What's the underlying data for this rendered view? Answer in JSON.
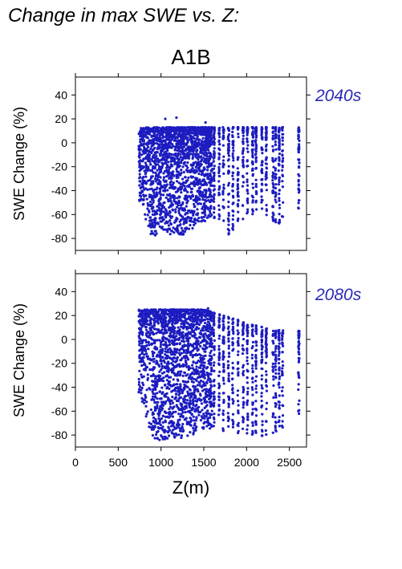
{
  "title": "Change in max SWE vs. Z:",
  "chart_data": {
    "type": "scatter",
    "scenario": "A1B",
    "xlabel": "Z(m)",
    "ylabel": "SWE Change (%)",
    "xlim": [
      0,
      2700
    ],
    "ylim": [
      -90,
      55
    ],
    "xticks": [
      0,
      500,
      1000,
      1500,
      2000,
      2500
    ],
    "yticks": [
      40,
      20,
      0,
      -20,
      -40,
      -60,
      -80
    ],
    "point_color": "#1c1cc0",
    "panels": [
      {
        "label": "2040s",
        "x_range": [
          740,
          2620
        ],
        "y_max": 13,
        "y_min_bins": [
          {
            "x": 750,
            "y": -50
          },
          {
            "x": 900,
            "y": -80
          },
          {
            "x": 1000,
            "y": -72
          },
          {
            "x": 1200,
            "y": -80
          },
          {
            "x": 1400,
            "y": -70
          },
          {
            "x": 1600,
            "y": -62
          },
          {
            "x": 1800,
            "y": -80
          },
          {
            "x": 2000,
            "y": -60
          },
          {
            "x": 2200,
            "y": -60
          },
          {
            "x": 2350,
            "y": -70
          },
          {
            "x": 2620,
            "y": -56
          }
        ],
        "outliers": [
          {
            "x": 1180,
            "y": 21
          },
          {
            "x": 1520,
            "y": 17
          },
          {
            "x": 1050,
            "y": 20
          }
        ]
      },
      {
        "label": "2080s",
        "x_range": [
          740,
          2620
        ],
        "y_max_bins": [
          {
            "x": 750,
            "y": 25
          },
          {
            "x": 1500,
            "y": 25
          },
          {
            "x": 2000,
            "y": 14
          },
          {
            "x": 2300,
            "y": 8
          },
          {
            "x": 2620,
            "y": 7
          }
        ],
        "y_min_bins": [
          {
            "x": 750,
            "y": -45
          },
          {
            "x": 900,
            "y": -85
          },
          {
            "x": 1100,
            "y": -83
          },
          {
            "x": 1300,
            "y": -82
          },
          {
            "x": 1500,
            "y": -75
          },
          {
            "x": 1700,
            "y": -76
          },
          {
            "x": 1900,
            "y": -80
          },
          {
            "x": 2100,
            "y": -82
          },
          {
            "x": 2300,
            "y": -80
          },
          {
            "x": 2620,
            "y": -68
          }
        ],
        "outliers": [
          {
            "x": 1550,
            "y": 26
          }
        ]
      }
    ]
  }
}
